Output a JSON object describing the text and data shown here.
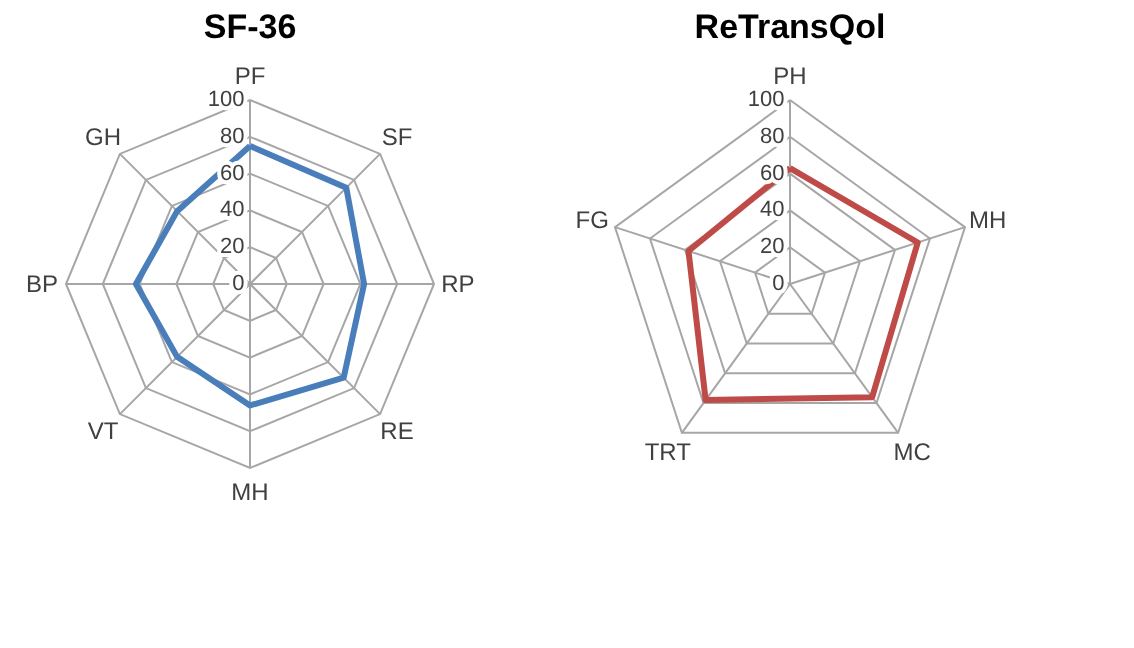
{
  "chart_data": [
    {
      "type": "radar",
      "title": "SF-36",
      "categories": [
        "PF",
        "SF",
        "RP",
        "RE",
        "MH",
        "VT",
        "BP",
        "GH"
      ],
      "ylim": [
        0,
        100
      ],
      "yticks": [
        0,
        20,
        40,
        60,
        80,
        100
      ],
      "grid": true,
      "marker": "none",
      "series": [
        {
          "color": "#4a7ebb",
          "values": [
            75,
            74,
            62,
            72,
            66,
            56,
            62,
            56
          ]
        }
      ]
    },
    {
      "type": "radar",
      "title": "ReTransQol",
      "categories": [
        "PH",
        "MH",
        "MC",
        "TRT",
        "FG"
      ],
      "ylim": [
        0,
        100
      ],
      "yticks": [
        0,
        20,
        40,
        60,
        80,
        100
      ],
      "grid": true,
      "marker": "none",
      "series": [
        {
          "color": "#be4b48",
          "values": [
            63,
            73,
            76,
            78,
            58
          ]
        }
      ]
    }
  ]
}
